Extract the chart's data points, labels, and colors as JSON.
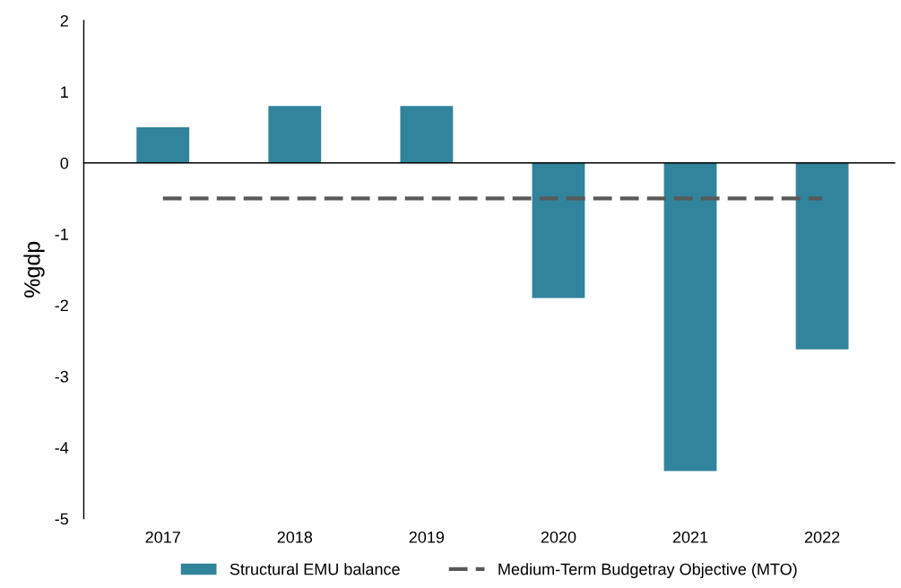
{
  "chart_data": {
    "type": "bar",
    "ylabel": "%gdp",
    "categories": [
      "2017",
      "2018",
      "2019",
      "2020",
      "2021",
      "2022"
    ],
    "series": [
      {
        "name": "Structural EMU balance",
        "color": "#31849b",
        "values": [
          0.5,
          0.8,
          0.8,
          -1.9,
          -4.33,
          -2.62
        ]
      },
      {
        "name": "Medium-Term Budgetray Objective (MTO)",
        "type": "line",
        "color": "#595959",
        "line_style": "dashed",
        "values": [
          -0.5,
          -0.5,
          -0.5,
          -0.5,
          -0.5,
          -0.5
        ]
      }
    ],
    "ylim": [
      -5,
      2
    ],
    "yticks": [
      -5,
      -4,
      -3,
      -2,
      -1,
      0,
      1,
      2
    ],
    "legend": "bottom"
  }
}
